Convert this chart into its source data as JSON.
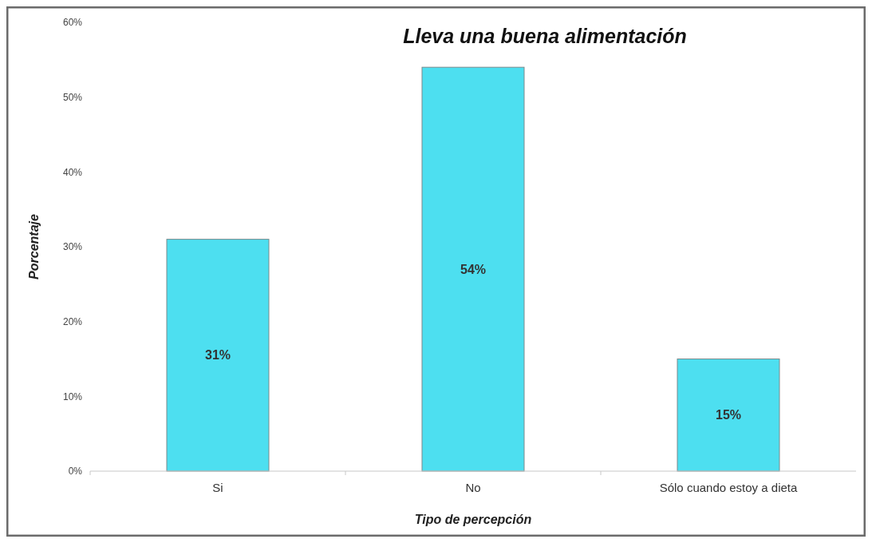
{
  "chart_data": {
    "type": "bar",
    "title": "Lleva una buena alimentación",
    "xlabel": "Tipo de percepción",
    "ylabel": "Porcentaje",
    "categories": [
      "Si",
      "No",
      "Sólo cuando estoy a dieta"
    ],
    "values": [
      31,
      54,
      15
    ],
    "value_labels": [
      "31%",
      "54%",
      "15%"
    ],
    "color": "#4ddff0",
    "ylim": [
      0,
      60
    ],
    "yticks": [
      {
        "value": 0,
        "label": "0%"
      },
      {
        "value": 10,
        "label": "10%"
      },
      {
        "value": 20,
        "label": "20%"
      },
      {
        "value": 30,
        "label": "30%"
      },
      {
        "value": 40,
        "label": "40%"
      },
      {
        "value": 50,
        "label": "50%"
      },
      {
        "value": 60,
        "label": "60%"
      }
    ],
    "grid": false
  }
}
